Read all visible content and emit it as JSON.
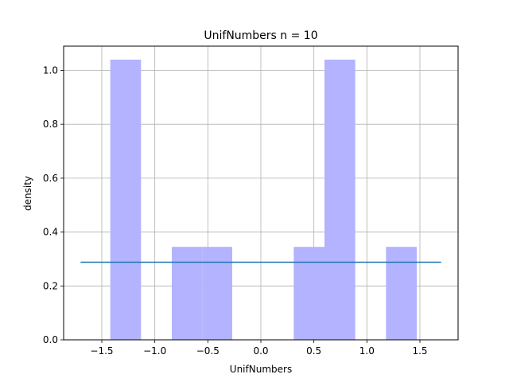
{
  "chart_data": {
    "type": "bar",
    "title": "UnifNumbers n = 10",
    "xlabel": "UnifNumbers",
    "ylabel": "density",
    "xlim": [
      -1.86,
      1.86
    ],
    "ylim": [
      0,
      1.09
    ],
    "grid": true,
    "x_ticks": [
      -1.5,
      -1.0,
      -0.5,
      0.0,
      0.5,
      1.0,
      1.5
    ],
    "x_tick_labels": [
      "−1.5",
      "−1.0",
      "−0.5",
      "0.0",
      "0.5",
      "1.0",
      "1.5"
    ],
    "y_ticks": [
      0.0,
      0.2,
      0.4,
      0.6,
      0.8,
      1.0
    ],
    "y_tick_labels": [
      "0.0",
      "0.2",
      "0.4",
      "0.6",
      "0.8",
      "1.0"
    ],
    "bar_color": "#b3b3ff",
    "line_color": "#1f77b4",
    "bins": [
      {
        "x0": -1.42,
        "x1": -1.13,
        "value": 1.04
      },
      {
        "x0": -1.13,
        "x1": -0.84,
        "value": 0.0
      },
      {
        "x0": -0.84,
        "x1": -0.55,
        "value": 0.345
      },
      {
        "x0": -0.55,
        "x1": -0.27,
        "value": 0.345
      },
      {
        "x0": -0.27,
        "x1": 0.02,
        "value": 0.0
      },
      {
        "x0": 0.02,
        "x1": 0.31,
        "value": 0.0
      },
      {
        "x0": 0.31,
        "x1": 0.6,
        "value": 0.345
      },
      {
        "x0": 0.6,
        "x1": 0.89,
        "value": 1.04
      },
      {
        "x0": 0.89,
        "x1": 1.18,
        "value": 0.0
      },
      {
        "x0": 1.18,
        "x1": 1.47,
        "value": 0.345
      }
    ],
    "density_line": {
      "x": [
        -1.7,
        1.7
      ],
      "y": [
        0.288,
        0.288
      ]
    }
  }
}
